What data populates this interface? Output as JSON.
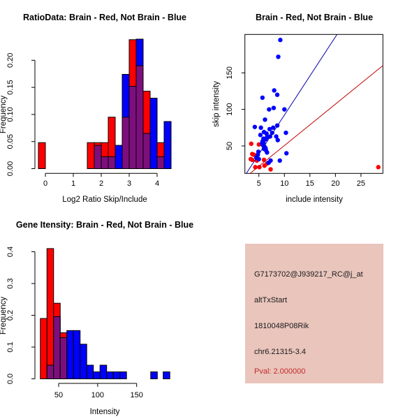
{
  "page": {
    "background": "#FFFFFF"
  },
  "chart_data": [
    {
      "type": "bar",
      "subtype": "overlaid-histogram",
      "title": "RatioData: Brain - Red, Not Brain - Blue",
      "xlabel": "Log2 Ratio Skip/Include",
      "ylabel": "Frequency",
      "bin_width": 0.25,
      "xlim": [
        -0.45,
        4.6
      ],
      "ylim": [
        0,
        0.245
      ],
      "x_ticks": [
        0,
        1,
        2,
        3,
        4
      ],
      "x_tick_labels": [
        "0",
        "1",
        "2",
        "3",
        "4"
      ],
      "y_ticks": [
        0,
        0.05,
        0.1,
        0.15,
        0.2
      ],
      "y_tick_labels": [
        "0.00",
        "0.05",
        "0.10",
        "0.15",
        "0.20"
      ],
      "grid": false,
      "legend": "none",
      "overlap_color": "#7D0F7D",
      "series": [
        {
          "name": "Brain",
          "color": "#FF0000",
          "bins": [
            [
              -0.25,
              0.048
            ],
            [
              1.5,
              0.048
            ],
            [
              1.75,
              0.048
            ],
            [
              2.0,
              0.048
            ],
            [
              2.25,
              0.095
            ],
            [
              2.75,
              0.095
            ],
            [
              3.0,
              0.238
            ],
            [
              3.25,
              0.19
            ],
            [
              3.5,
              0.143
            ],
            [
              4.0,
              0.048
            ]
          ]
        },
        {
          "name": "Not Brain",
          "color": "#0000FF",
          "bins": [
            [
              1.75,
              0.043
            ],
            [
              2.0,
              0.022
            ],
            [
              2.25,
              0.022
            ],
            [
              2.5,
              0.043
            ],
            [
              2.75,
              0.174
            ],
            [
              3.0,
              0.152
            ],
            [
              3.25,
              0.239
            ],
            [
              3.5,
              0.065
            ],
            [
              3.75,
              0.13
            ],
            [
              4.0,
              0.022
            ],
            [
              4.25,
              0.087
            ]
          ]
        }
      ]
    },
    {
      "type": "scatter",
      "title": "Brain - Red, Not Brain - Blue",
      "xlabel": "include intensity",
      "ylabel": "skip intensity",
      "xlim": [
        2.3,
        29.35
      ],
      "ylim": [
        12.5,
        202.6
      ],
      "x_ticks": [
        5,
        10,
        15,
        20,
        25
      ],
      "x_tick_labels": [
        "5",
        "10",
        "15",
        "20",
        "25"
      ],
      "y_ticks": [
        50,
        100,
        150
      ],
      "y_tick_labels": [
        "50",
        "100",
        "150"
      ],
      "grid": false,
      "legend": "none",
      "series": [
        {
          "name": "Brain",
          "color": "#FF0000",
          "line_color": "#C00000",
          "fit_line": [
            3.3,
            12.5,
            29.3,
            160
          ],
          "points": [
            [
              3.5,
              53
            ],
            [
              5.0,
              52
            ],
            [
              3.7,
              39
            ],
            [
              4.0,
              38
            ],
            [
              3.4,
              32
            ],
            [
              3.7,
              31
            ],
            [
              4.6,
              30
            ],
            [
              6.0,
              31
            ],
            [
              4.3,
              21
            ],
            [
              5.1,
              21
            ],
            [
              6.1,
              23
            ],
            [
              6.6,
              26
            ],
            [
              7.3,
              18
            ],
            [
              28.4,
              21
            ]
          ]
        },
        {
          "name": "Not Brain",
          "color": "#0000FF",
          "line_color": "#0000A8",
          "fit_line": [
            2.55,
            12.5,
            20.3,
            202.5
          ],
          "points": [
            [
              9.2,
              195
            ],
            [
              8.8,
              172
            ],
            [
              8.0,
              126
            ],
            [
              8.6,
              120
            ],
            [
              5.7,
              116
            ],
            [
              7.9,
              102
            ],
            [
              7.0,
              100
            ],
            [
              10.0,
              100
            ],
            [
              6.2,
              86
            ],
            [
              8.6,
              78
            ],
            [
              4.2,
              76
            ],
            [
              7.8,
              75
            ],
            [
              5.4,
              75
            ],
            [
              7.1,
              73
            ],
            [
              6.0,
              69
            ],
            [
              7.6,
              68
            ],
            [
              10.3,
              68
            ],
            [
              6.5,
              67
            ],
            [
              5.3,
              65
            ],
            [
              8.4,
              63
            ],
            [
              7.2,
              63
            ],
            [
              6.6,
              62
            ],
            [
              5.9,
              60
            ],
            [
              6.3,
              59
            ],
            [
              8.7,
              58
            ],
            [
              5.8,
              57
            ],
            [
              5.7,
              56
            ],
            [
              5.9,
              54
            ],
            [
              5.6,
              53
            ],
            [
              5.8,
              51
            ],
            [
              6.1,
              49
            ],
            [
              6.3,
              47
            ],
            [
              6.0,
              46
            ],
            [
              6.4,
              44
            ],
            [
              4.9,
              42
            ],
            [
              6.6,
              41
            ],
            [
              10.4,
              40
            ],
            [
              4.8,
              38
            ],
            [
              4.5,
              34
            ],
            [
              5.0,
              32
            ],
            [
              7.3,
              30
            ],
            [
              9.1,
              30
            ],
            [
              6.9,
              27
            ]
          ]
        }
      ]
    },
    {
      "type": "bar",
      "subtype": "overlaid-histogram",
      "title": "Gene Itensity: Brain - Red, Not Brain - Blue",
      "xlabel": "Intensity",
      "ylabel": "Frequency",
      "bin_width": 8.5,
      "xlim": [
        20,
        200
      ],
      "ylim": [
        0,
        0.43
      ],
      "x_ticks": [
        50,
        100,
        150
      ],
      "x_tick_labels": [
        "50",
        "100",
        "150"
      ],
      "y_ticks": [
        0,
        0.1,
        0.2,
        0.3,
        0.4
      ],
      "y_tick_labels": [
        "0.0",
        "0.1",
        "0.2",
        "0.3",
        "0.4"
      ],
      "grid": false,
      "legend": "none",
      "overlap_color": "#7D0F7D",
      "series": [
        {
          "name": "Brain",
          "color": "#FF0000",
          "bins": [
            [
              26.5,
              0.19
            ],
            [
              35,
              0.41
            ],
            [
              43.5,
              0.238
            ],
            [
              52,
              0.145
            ]
          ]
        },
        {
          "name": "Not Brain",
          "color": "#0000FF",
          "bins": [
            [
              35,
              0.043
            ],
            [
              43.5,
              0.196
            ],
            [
              52,
              0.13
            ],
            [
              60.5,
              0.152
            ],
            [
              69,
              0.152
            ],
            [
              77.5,
              0.109
            ],
            [
              86,
              0.043
            ],
            [
              94.5,
              0.022
            ],
            [
              103,
              0.043
            ],
            [
              111.5,
              0.022
            ],
            [
              120,
              0.022
            ],
            [
              128.5,
              0.022
            ],
            [
              168,
              0.022
            ],
            [
              184,
              0.022
            ]
          ]
        }
      ]
    }
  ],
  "info": {
    "bg_color": "#E9C5BC",
    "text_color": "#1A1A1A",
    "pval_color": "#C42A2A",
    "lines": [
      "G7173702@J939217_RC@j_at",
      "altTxStart",
      "1810048P08Rik",
      "chr6.21315-3.4",
      "Pval: 2.000000"
    ]
  }
}
